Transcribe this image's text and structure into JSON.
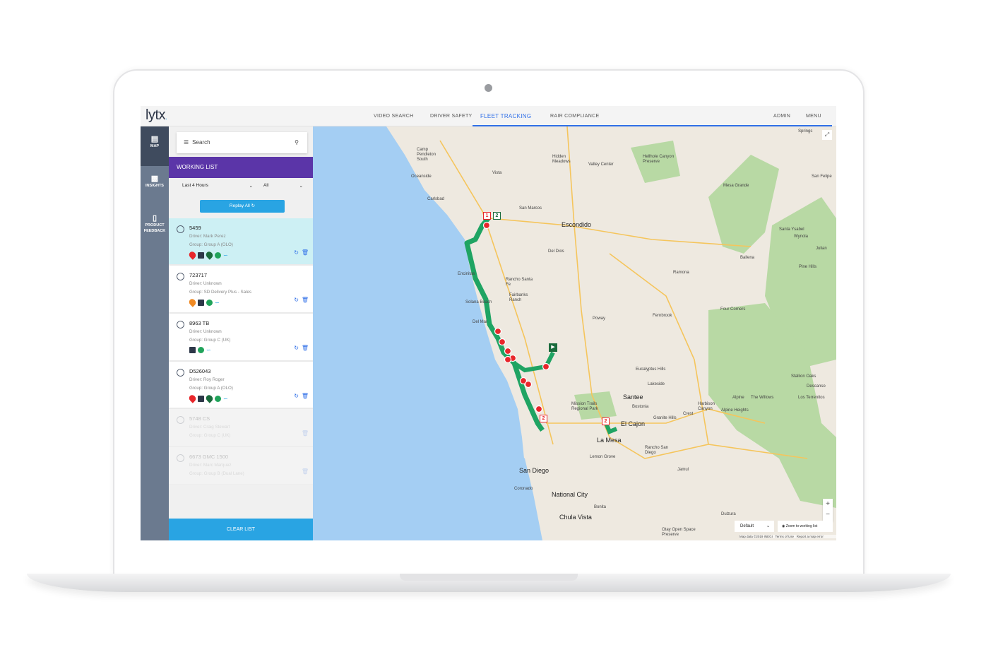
{
  "app": {
    "logo": "lytx",
    "logo_dot": "."
  },
  "nav": {
    "items": [
      "VIDEO SEARCH",
      "DRIVER SAFETY",
      "FLEET TRACKING",
      "RAIR COMPLIANCE"
    ],
    "active": "FLEET TRACKING",
    "right": [
      "ADMIN",
      "MENU"
    ],
    "accent": "#2f6fe8"
  },
  "rail": {
    "items": [
      {
        "label": "MAP",
        "icon": "map-icon"
      },
      {
        "label": "INSIGHTS",
        "icon": "bar-chart-icon"
      },
      {
        "label": "PRODUCT FEEDBACK",
        "icon": "chat-icon"
      }
    ]
  },
  "panel": {
    "search_placeholder": "Search",
    "working_list": "WORKING LIST",
    "time_filter": "Last 4 Hours",
    "type_filter": "All",
    "replay_all": "Replay All",
    "clear_list": "CLEAR LIST",
    "vehicles": [
      {
        "id": "5459",
        "driver": "Driver: Mark Perez",
        "group": "Group: Group A (OLO)"
      },
      {
        "id": "723717",
        "driver": "Driver: Unknown",
        "group": "Group: SD Delivery Plus - Sales"
      },
      {
        "id": "8963 TB",
        "driver": "Driver: Unknown",
        "group": "Group: Group C (UK)"
      },
      {
        "id": "D526043",
        "driver": "Driver: Roy Roger",
        "group": "Group: Group A (OLO)"
      },
      {
        "id": "5748 CS",
        "driver": "Driver: Craig Stewart",
        "group": "Group: Group C (UK)"
      },
      {
        "id": "6673 GMC 1500",
        "driver": "Driver: Marc Marquez",
        "group": "Group: Group B (Dual Lane)"
      }
    ]
  },
  "map": {
    "labels": [
      "Camp Pendleton South",
      "Oceanside",
      "Vista",
      "Carlsbad",
      "San Marcos",
      "Escondido",
      "Encinitas",
      "Del Dios",
      "Rancho Santa Fe",
      "Solana Beach",
      "Del Mar",
      "Poway",
      "Santee",
      "El Cajon",
      "La Mesa",
      "San Diego",
      "National City",
      "Chula Vista",
      "Coronado",
      "Lakeside",
      "Ramona",
      "Julian",
      "Santa Ysabel",
      "Wynola",
      "Ballena",
      "Mesa Grande",
      "Fernbrook",
      "Four Corners",
      "Pine Hills",
      "Alpine",
      "Crest",
      "Jamul",
      "Dulzura",
      "Descanso",
      "Harbison Canyon",
      "Valley Center",
      "Hidden Meadows",
      "Springs",
      "San Felipe",
      "Mission Trails Regional Park",
      "Otay Open Space Preserve",
      "Lemon Grove",
      "Bonita",
      "Stallion Oaks",
      "Los Terrenitos",
      "The Willows",
      "Alpine Heights",
      "Granite Hills",
      "Rancho San Diego",
      "Eucalyptus Hills",
      "Bostonia",
      "Fairbanks Ranch",
      "Hellhole Canyon Preserve"
    ],
    "markers": [
      "1",
      "2",
      "2",
      "2"
    ],
    "map_type": "Default",
    "zoom_to_list": "Zoom to working list",
    "attribution": "Map data ©2019 INEGI",
    "terms": "Terms of Use",
    "report": "Report a map error",
    "route_color": "#1fa463",
    "event_color": "#e8262b"
  }
}
